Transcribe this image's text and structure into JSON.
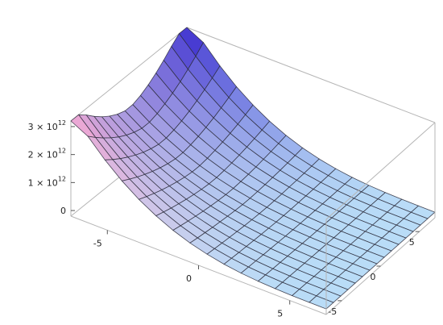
{
  "chart_data": {
    "type": "surface3d",
    "title": "",
    "xlabel": "",
    "ylabel": "",
    "zlabel": "",
    "xlim": [
      -7,
      7
    ],
    "ylim": [
      -7,
      7
    ],
    "zlim": [
      -0.2,
      3.2
    ],
    "z_scale_note_units": "1e12",
    "mesh_lines": 15,
    "x_ticks": [
      {
        "value": -5,
        "label": "-5"
      },
      {
        "value": 0,
        "label": "0"
      },
      {
        "value": 5,
        "label": "5"
      }
    ],
    "y_ticks": [
      {
        "value": -5,
        "label": "-5"
      },
      {
        "value": 0,
        "label": "0"
      },
      {
        "value": 5,
        "label": "5"
      }
    ],
    "z_ticks": [
      {
        "value": 0,
        "base": "0",
        "exp": ""
      },
      {
        "value": 1,
        "base": "1 × 10",
        "exp": "12"
      },
      {
        "value": 2,
        "base": "2 × 10",
        "exp": "12"
      },
      {
        "value": 3,
        "base": "3 × 10",
        "exp": "12"
      }
    ],
    "colors": {
      "low": "#b9dcf7",
      "high_left": "#f3a9d3",
      "high_right": "#3b2fd0",
      "mesh": "#2a2a3a",
      "box": "#b5b5b5",
      "plateau": "#8fb6ee"
    }
  }
}
